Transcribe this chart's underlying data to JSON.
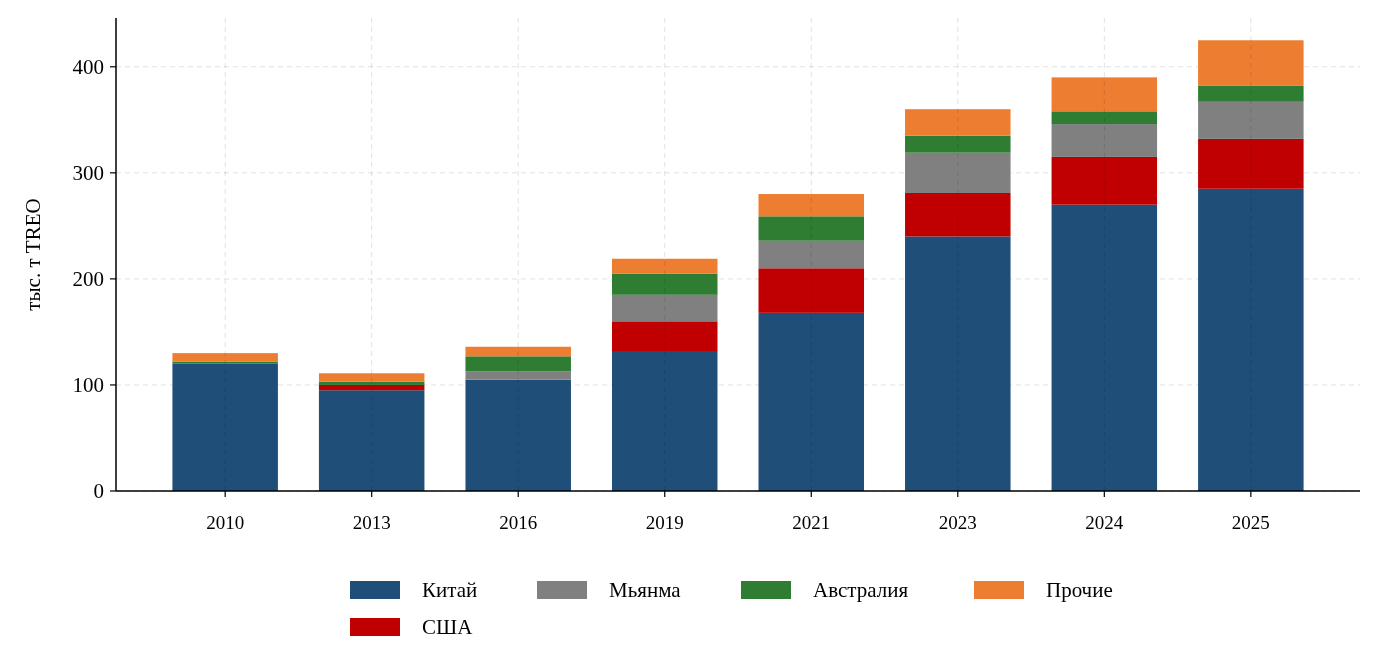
{
  "chart_data": {
    "type": "bar",
    "stacked": true,
    "ylabel": "тыс. т TREO",
    "categories": [
      "2010",
      "2013",
      "2016",
      "2019",
      "2021",
      "2023",
      "2024",
      "2025"
    ],
    "series": [
      {
        "name": "Китай",
        "color": "#1f4e79",
        "values": [
          120,
          95,
          105,
          132,
          168,
          240,
          270,
          285
        ]
      },
      {
        "name": "США",
        "color": "#c00000",
        "values": [
          0,
          5,
          0,
          28,
          42,
          41,
          45,
          47
        ]
      },
      {
        "name": "Мьянма",
        "color": "#808080",
        "values": [
          0,
          0,
          8,
          25,
          26,
          38,
          31,
          35
        ]
      },
      {
        "name": "Австралия",
        "color": "#2e7d32",
        "values": [
          2,
          3,
          14,
          20,
          23,
          16,
          12,
          15
        ]
      },
      {
        "name": "Прочие",
        "color": "#ed7d31",
        "values": [
          8,
          8,
          9,
          14,
          21,
          25,
          32,
          43
        ]
      }
    ],
    "ylim": [
      0,
      446
    ],
    "yticks": [
      0,
      100,
      200,
      300,
      400
    ],
    "grid": true,
    "legend": "bottom"
  }
}
